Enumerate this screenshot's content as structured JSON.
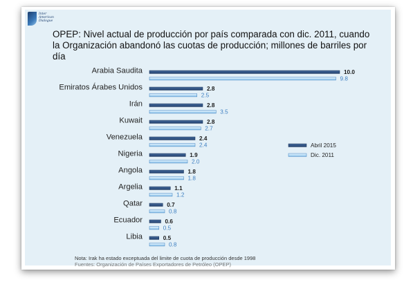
{
  "header": {
    "logo_text": [
      "Inter",
      "American",
      "Dialogue"
    ],
    "title_line1": "OPEP: Nivel actual de producción por país comparada con dic. 2011, cuando",
    "title_line2": "la Organización abandonó las cuotas de producción; millones de barriles por",
    "title_line3": "día"
  },
  "footer": {
    "note": "Nota: Irak ha estado exceptuada del limite de cuota de producción desde 1998",
    "source": "Fuentes: Organización de Países Exportadores de Petróleo (OPEP)"
  },
  "chart_data": {
    "type": "bar",
    "orientation": "horizontal",
    "title": "OPEP: Nivel actual de producción por país comparada con dic. 2011, cuando la Organización abandonó las cuotas de producción; millones de barriles por día",
    "categories": [
      "Arabia Saudita",
      "Emiratos Árabes Unidos",
      "Irán",
      "Kuwait",
      "Venezuela",
      "Nigeria",
      "Angola",
      "Argelia",
      "Qatar",
      "Ecuador",
      "Libia"
    ],
    "series": [
      {
        "name": "Abril 2015",
        "color": "#1f3f6e",
        "label_color": "#1a1a1a",
        "values": [
          10.0,
          2.8,
          2.8,
          2.8,
          2.4,
          1.9,
          1.8,
          1.1,
          0.7,
          0.6,
          0.5
        ]
      },
      {
        "name": "Dic. 2011",
        "color": "#8cc3ea",
        "label_color": "#3e7fc1",
        "values": [
          9.8,
          2.5,
          3.5,
          2.7,
          2.4,
          2.0,
          1.8,
          1.2,
          0.8,
          0.5,
          0.8
        ]
      }
    ],
    "legend_position": "right",
    "grid": false,
    "axes_visible": false
  }
}
